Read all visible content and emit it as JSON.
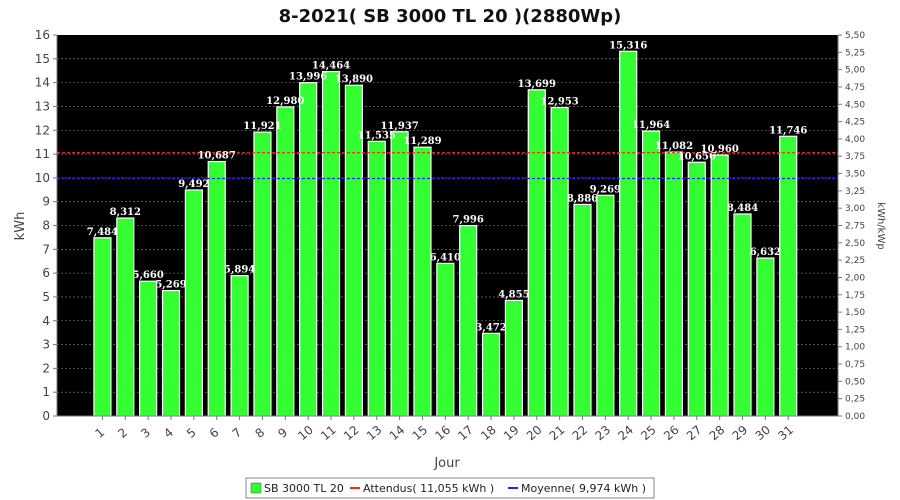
{
  "chart_data": {
    "type": "bar",
    "title": "8-2021( SB 3000 TL 20 )(2880Wp)",
    "xlabel": "Jour",
    "ylabel": "kWh",
    "ylabel_right": "kWh/kWp",
    "ylim": [
      0,
      16
    ],
    "yticks": [
      0,
      1,
      2,
      3,
      4,
      5,
      6,
      7,
      8,
      9,
      10,
      11,
      12,
      13,
      14,
      15,
      16
    ],
    "ylim_right": [
      0,
      5.5
    ],
    "yticks_right": [
      "0,00",
      "0,25",
      "0,50",
      "0,75",
      "1,00",
      "1,25",
      "1,50",
      "1,75",
      "2,00",
      "2,25",
      "2,50",
      "2,75",
      "3,00",
      "3,25",
      "3,50",
      "3,75",
      "4,00",
      "4,25",
      "4,50",
      "4,75",
      "5,00",
      "5,25",
      "5,50"
    ],
    "grid": true,
    "legend_position": "bottom",
    "categories": [
      "1",
      "2",
      "3",
      "4",
      "5",
      "6",
      "7",
      "8",
      "9",
      "10",
      "11",
      "12",
      "13",
      "14",
      "15",
      "16",
      "17",
      "18",
      "19",
      "20",
      "21",
      "22",
      "23",
      "24",
      "25",
      "26",
      "27",
      "28",
      "29",
      "30",
      "31"
    ],
    "series": [
      {
        "name": "SB 3000 TL 20",
        "color": "#33ff33",
        "values": [
          7.484,
          8.312,
          5.66,
          5.269,
          9.492,
          10.687,
          5.894,
          11.921,
          12.98,
          13.996,
          14.464,
          13.89,
          11.535,
          11.937,
          11.289,
          6.41,
          7.996,
          3.472,
          4.855,
          13.699,
          12.953,
          8.886,
          9.269,
          15.316,
          11.964,
          11.082,
          10.656,
          10.96,
          8.484,
          6.632,
          11.746
        ],
        "labels": [
          "7,484",
          "8,312",
          "5,660",
          "5,269",
          "9,492",
          "10,687",
          "5,894",
          "11,921",
          "12,980",
          "13,996",
          "14,464",
          "13,890",
          "11,535",
          "11,937",
          "11,289",
          "6,410",
          "7,996",
          "3,472",
          "4,855",
          "13,699",
          "12,953",
          "8,886",
          "9,269",
          "15,316",
          "11,964",
          "11,082",
          "10,656",
          "10,960",
          "8,484",
          "6,632",
          "11,746"
        ]
      }
    ],
    "reference_lines": [
      {
        "name": "Attendus( 11,055 kWh )",
        "value": 11.055,
        "color": "#ff2222",
        "style": "dashed"
      },
      {
        "name": "Moyenne( 9,974 kWh )",
        "value": 9.974,
        "color": "#2222ff",
        "style": "dashed"
      }
    ],
    "colors": {
      "plot_background": "#000000",
      "grid": "#888888"
    }
  }
}
